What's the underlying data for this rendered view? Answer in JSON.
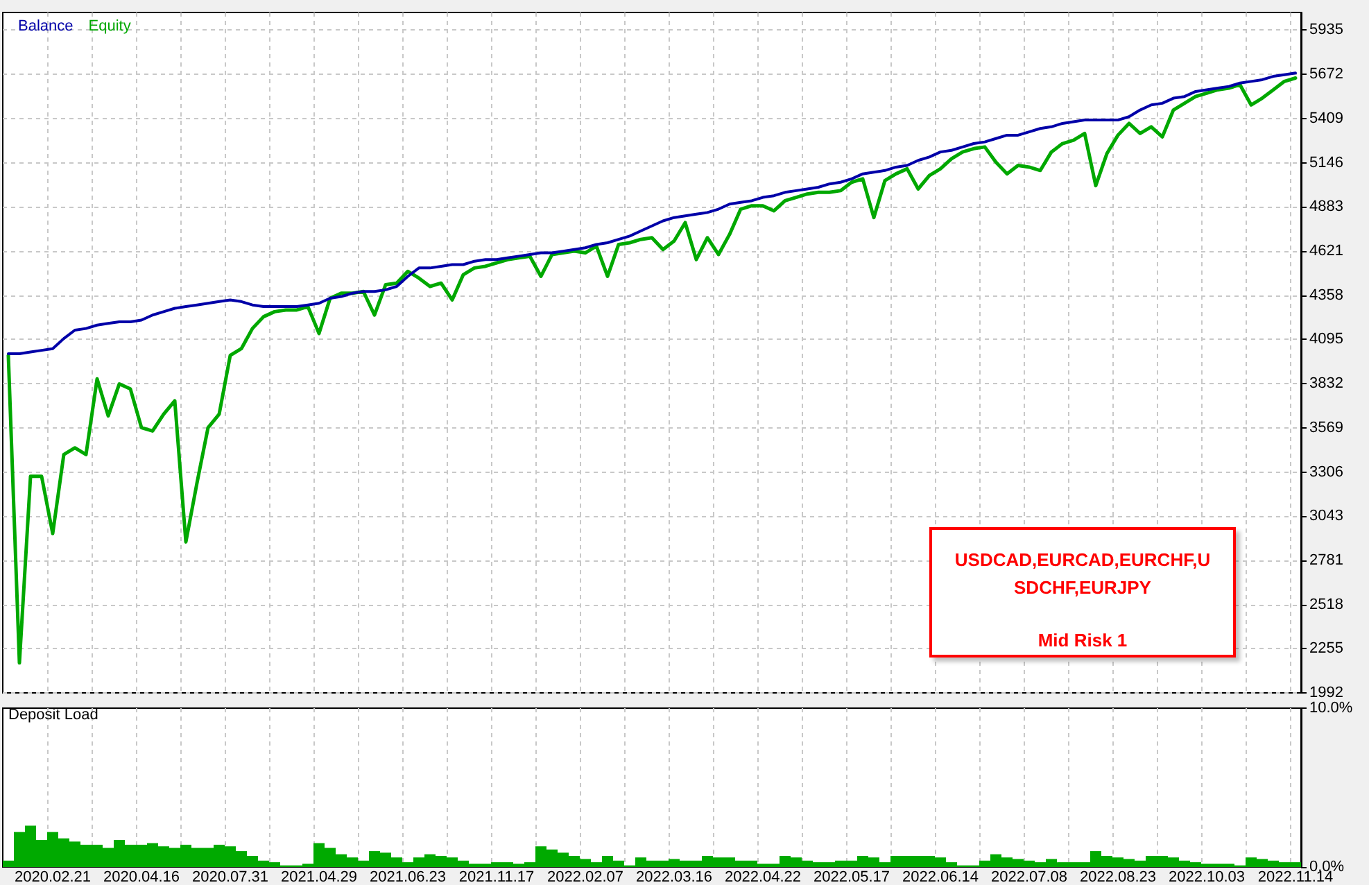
{
  "chart_data": [
    {
      "type": "line",
      "categories": [
        null,
        null,
        null,
        null,
        "2020.02.21",
        null,
        null,
        null,
        null,
        null,
        null,
        null,
        "2020.04.16",
        null,
        null,
        null,
        null,
        null,
        null,
        null,
        "2020.07.31",
        null,
        null,
        null,
        null,
        null,
        null,
        null,
        "2021.04.29",
        null,
        null,
        null,
        null,
        null,
        null,
        null,
        "2021.06.23",
        null,
        null,
        null,
        null,
        null,
        null,
        null,
        "2021.11.17",
        null,
        null,
        null,
        null,
        null,
        null,
        null,
        "2022.02.07",
        null,
        null,
        null,
        null,
        null,
        null,
        null,
        "2022.03.16",
        null,
        null,
        null,
        null,
        null,
        null,
        null,
        "2022.04.22",
        null,
        null,
        null,
        null,
        null,
        null,
        null,
        "2022.05.17",
        null,
        null,
        null,
        null,
        null,
        null,
        null,
        "2022.06.14",
        null,
        null,
        null,
        null,
        null,
        null,
        null,
        "2022.07.08",
        null,
        null,
        null,
        null,
        null,
        null,
        null,
        "2022.08.23",
        null,
        null,
        null,
        null,
        null,
        null,
        null,
        "2022.10.03",
        null,
        null,
        null,
        null,
        null,
        null,
        null,
        "2022.11.14"
      ],
      "series": [
        {
          "name": "Balance",
          "color": "#0000a8",
          "values": [
            4010,
            4010,
            4020,
            4030,
            4040,
            4100,
            4150,
            4160,
            4180,
            4190,
            4200,
            4200,
            4210,
            4240,
            4260,
            4280,
            4290,
            4300,
            4310,
            4320,
            4330,
            4320,
            4300,
            4290,
            4290,
            4290,
            4290,
            4300,
            4310,
            4340,
            4350,
            4370,
            4380,
            4380,
            4390,
            4410,
            4470,
            4520,
            4520,
            4530,
            4540,
            4540,
            4560,
            4570,
            4570,
            4580,
            4590,
            4600,
            4610,
            4610,
            4620,
            4630,
            4640,
            4660,
            4670,
            4690,
            4710,
            4740,
            4770,
            4800,
            4820,
            4830,
            4840,
            4850,
            4870,
            4900,
            4910,
            4920,
            4940,
            4950,
            4970,
            4980,
            4990,
            5000,
            5020,
            5030,
            5050,
            5080,
            5090,
            5100,
            5120,
            5130,
            5160,
            5180,
            5210,
            5220,
            5240,
            5260,
            5270,
            5290,
            5310,
            5310,
            5330,
            5350,
            5360,
            5380,
            5390,
            5400,
            5400,
            5400,
            5400,
            5420,
            5460,
            5490,
            5500,
            5530,
            5540,
            5570,
            5580,
            5590,
            5600,
            5620,
            5630,
            5640,
            5660,
            5670,
            5680
          ]
        },
        {
          "name": "Equity",
          "color": "#00a800",
          "values": [
            4000,
            2170,
            3280,
            3280,
            2940,
            3410,
            3450,
            3410,
            3860,
            3640,
            3830,
            3800,
            3570,
            3550,
            3650,
            3730,
            2890,
            3240,
            3570,
            3650,
            4000,
            4040,
            4160,
            4230,
            4260,
            4270,
            4270,
            4290,
            4130,
            4340,
            4370,
            4370,
            4380,
            4240,
            4420,
            4430,
            4500,
            4460,
            4410,
            4430,
            4330,
            4480,
            4520,
            4530,
            4550,
            4570,
            4580,
            4590,
            4470,
            4600,
            4610,
            4620,
            4610,
            4650,
            4470,
            4660,
            4670,
            4690,
            4700,
            4630,
            4680,
            4790,
            4570,
            4700,
            4600,
            4720,
            4870,
            4890,
            4890,
            4860,
            4920,
            4940,
            4960,
            4970,
            4970,
            4980,
            5030,
            5050,
            4820,
            5040,
            5080,
            5110,
            4990,
            5070,
            5110,
            5170,
            5210,
            5230,
            5240,
            5150,
            5080,
            5130,
            5120,
            5100,
            5210,
            5260,
            5280,
            5320,
            5010,
            5200,
            5310,
            5380,
            5320,
            5360,
            5300,
            5460,
            5500,
            5540,
            5560,
            5580,
            5590,
            5610,
            5490,
            5530,
            5580,
            5630,
            5650
          ]
        }
      ],
      "ylim": [
        1992,
        6040
      ],
      "yticks": [
        1992,
        2255,
        2518,
        2781,
        3043,
        3306,
        3569,
        3832,
        4095,
        4358,
        4621,
        4883,
        5146,
        5409,
        5672,
        5935
      ],
      "grid": true,
      "legend": "top left",
      "line_style": "solid",
      "tick_labels": "y",
      "annotations": [
        "USDCAD,EURCAD,EURCHF,USDCHF,EURJPY",
        "Mid Risk 1"
      ]
    },
    {
      "type": "bar",
      "title": "Deposit Load",
      "categories": [
        null,
        null,
        null,
        null,
        "2020.02.21",
        null,
        null,
        null,
        null,
        null,
        null,
        null,
        "2020.04.16",
        null,
        null,
        null,
        null,
        null,
        null,
        null,
        "2020.07.31",
        null,
        null,
        null,
        null,
        null,
        null,
        null,
        "2021.04.29",
        null,
        null,
        null,
        null,
        null,
        null,
        null,
        "2021.06.23",
        null,
        null,
        null,
        null,
        null,
        null,
        null,
        "2021.11.17",
        null,
        null,
        null,
        null,
        null,
        null,
        null,
        "2022.02.07",
        null,
        null,
        null,
        null,
        null,
        null,
        null,
        "2022.03.16",
        null,
        null,
        null,
        null,
        null,
        null,
        null,
        "2022.04.22",
        null,
        null,
        null,
        null,
        null,
        null,
        null,
        "2022.05.17",
        null,
        null,
        null,
        null,
        null,
        null,
        null,
        "2022.06.14",
        null,
        null,
        null,
        null,
        null,
        null,
        null,
        "2022.07.08",
        null,
        null,
        null,
        null,
        null,
        null,
        null,
        "2022.08.23",
        null,
        null,
        null,
        null,
        null,
        null,
        null,
        "2022.10.03",
        null,
        null,
        null,
        null,
        null,
        null,
        null,
        "2022.11.14"
      ],
      "values": [
        0.4,
        2.2,
        2.6,
        1.7,
        2.2,
        1.8,
        1.6,
        1.4,
        1.4,
        1.2,
        1.7,
        1.4,
        1.4,
        1.5,
        1.3,
        1.2,
        1.4,
        1.2,
        1.2,
        1.4,
        1.3,
        1.0,
        0.7,
        0.4,
        0.3,
        0.1,
        0.1,
        0.2,
        1.5,
        1.2,
        0.8,
        0.6,
        0.4,
        1.0,
        0.9,
        0.6,
        0.3,
        0.6,
        0.8,
        0.7,
        0.6,
        0.4,
        0.2,
        0.2,
        0.3,
        0.3,
        0.2,
        0.3,
        1.3,
        1.1,
        0.9,
        0.7,
        0.5,
        0.3,
        0.7,
        0.4,
        0.1,
        0.6,
        0.4,
        0.4,
        0.5,
        0.4,
        0.4,
        0.7,
        0.6,
        0.6,
        0.4,
        0.4,
        0.2,
        0.2,
        0.7,
        0.6,
        0.4,
        0.3,
        0.3,
        0.4,
        0.4,
        0.7,
        0.6,
        0.3,
        0.7,
        0.7,
        0.7,
        0.7,
        0.6,
        0.3,
        0.1,
        0.1,
        0.4,
        0.8,
        0.6,
        0.5,
        0.4,
        0.3,
        0.5,
        0.3,
        0.3,
        0.3,
        1.0,
        0.7,
        0.6,
        0.5,
        0.4,
        0.7,
        0.7,
        0.6,
        0.4,
        0.3,
        0.2,
        0.2,
        0.2,
        0.1,
        0.6,
        0.5,
        0.4,
        0.3,
        0.3
      ],
      "color": "#00aa00",
      "ylim": [
        0,
        10
      ],
      "yticks": [
        {
          "value": 0,
          "label": "0.0%"
        },
        {
          "value": 10,
          "label": "10.0%"
        }
      ],
      "grid": "x"
    }
  ]
}
